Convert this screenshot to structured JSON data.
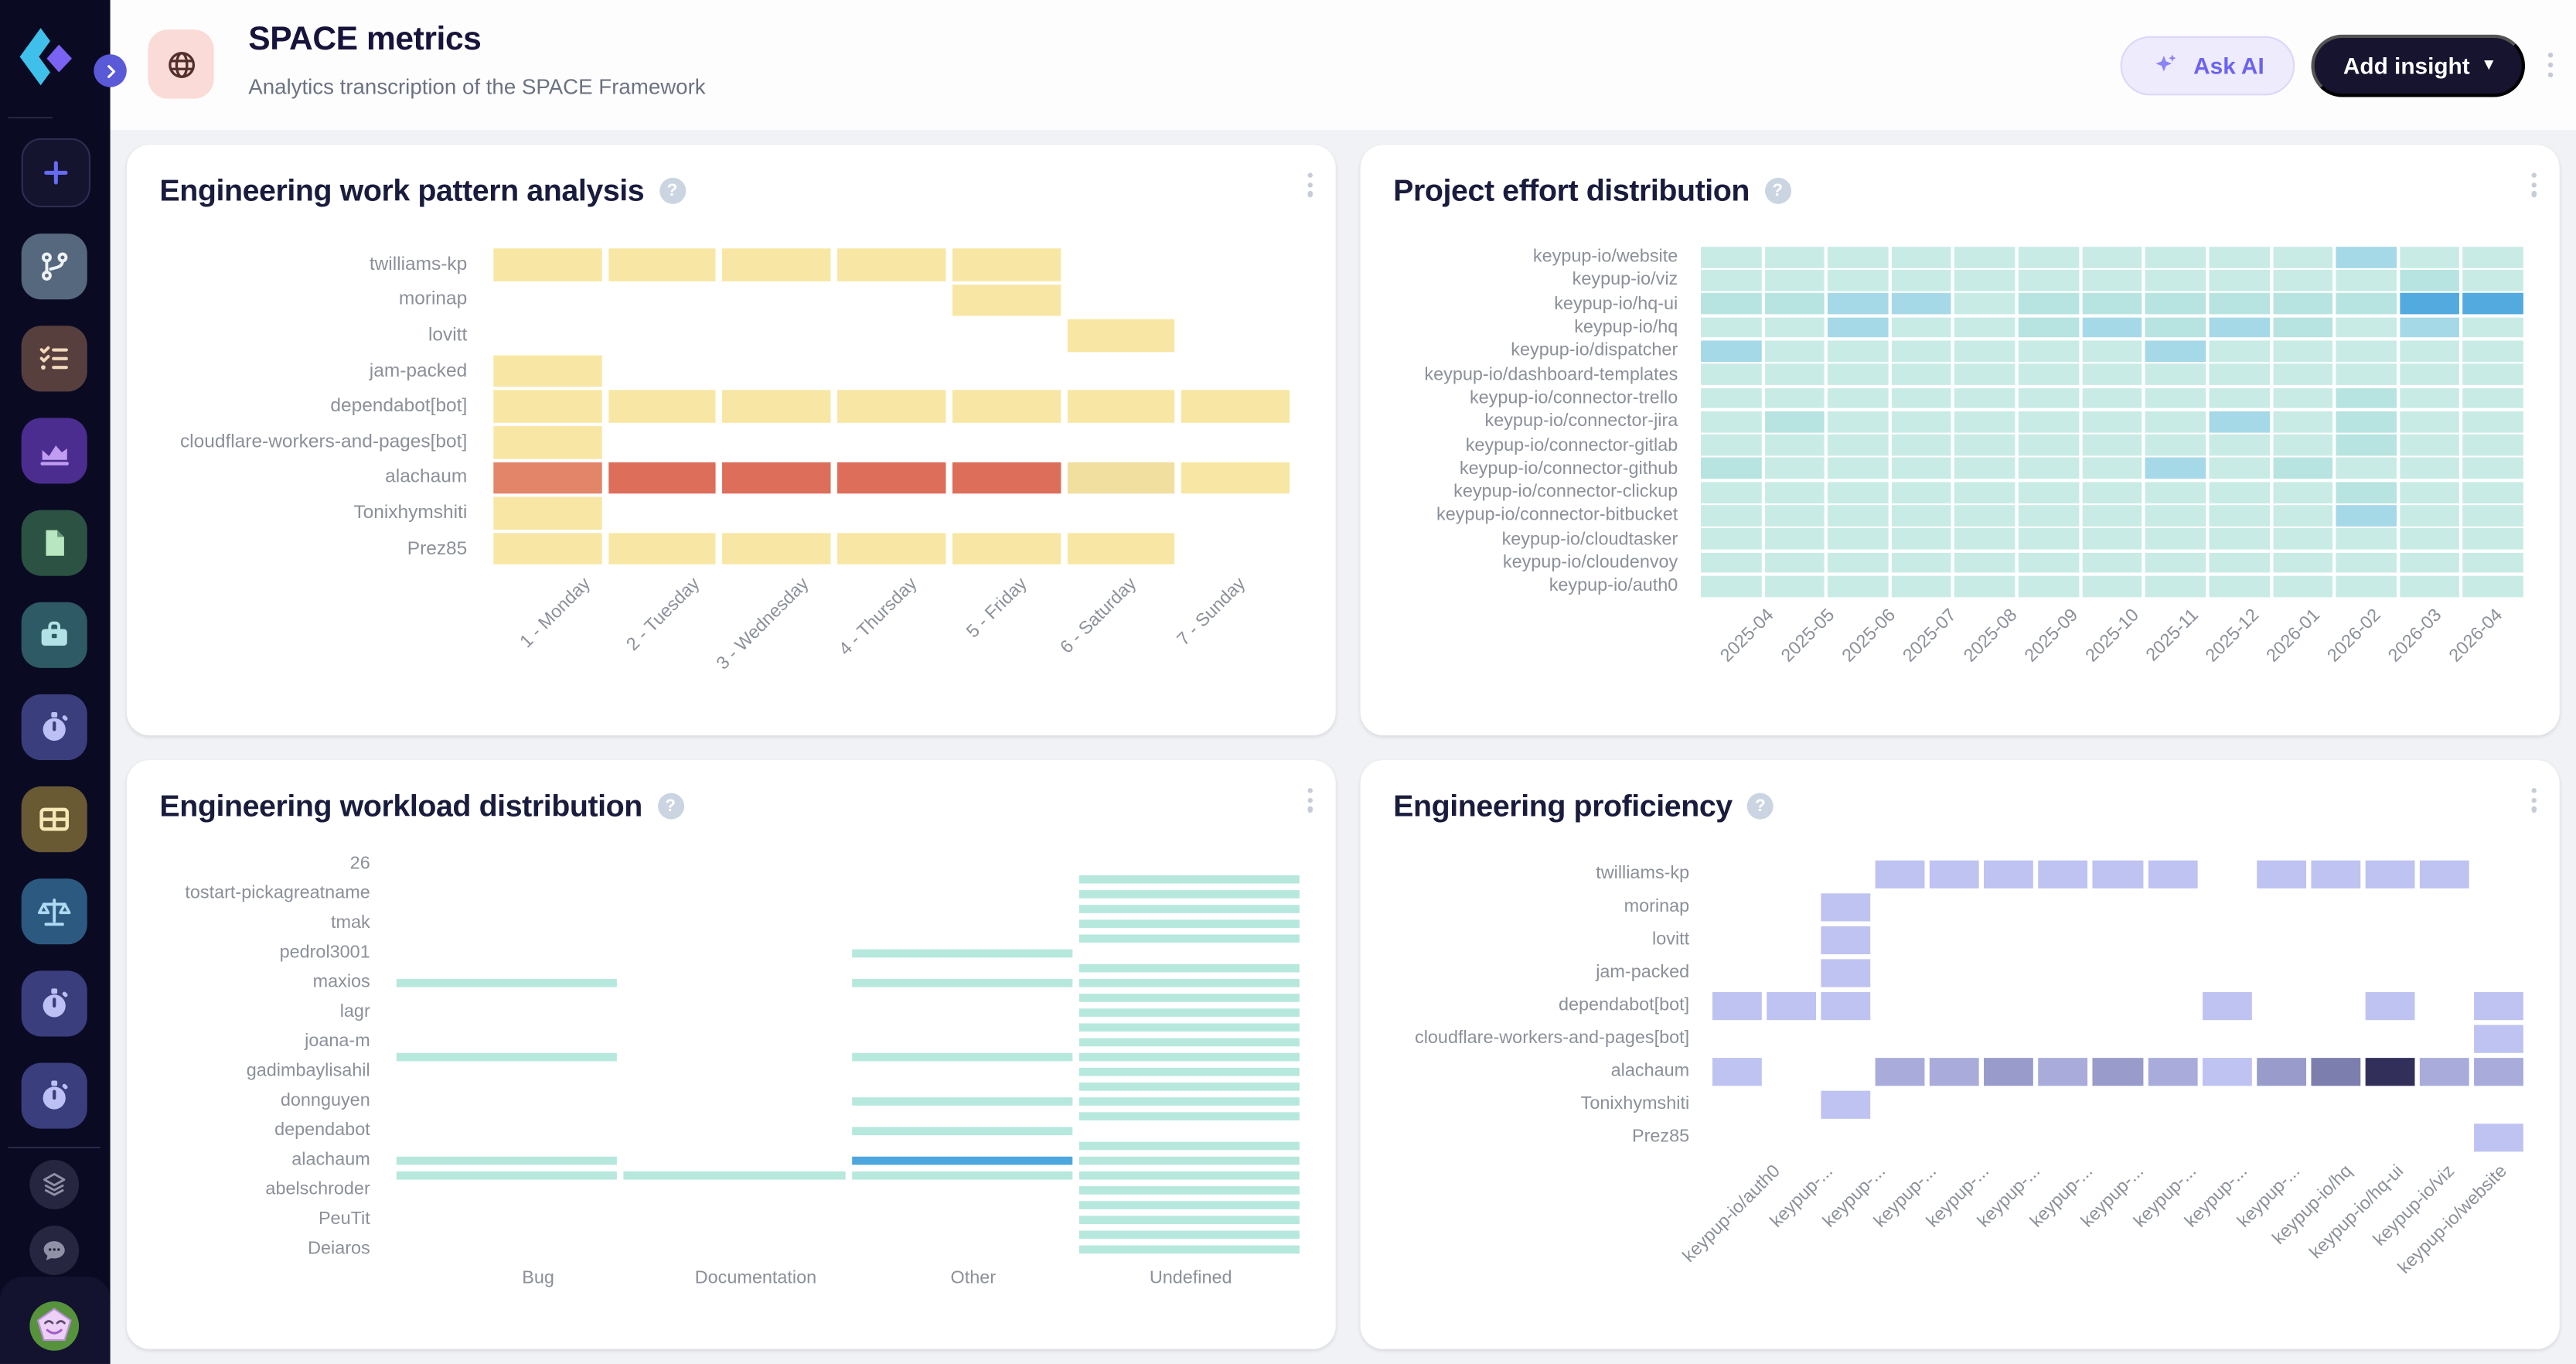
{
  "header": {
    "title": "SPACE metrics",
    "subtitle": "Analytics transcription of the SPACE Framework",
    "ask_ai_label": "Ask AI",
    "add_insight_label": "Add insight",
    "add_insight_caret": "▾"
  },
  "colors": {
    "sidebar_bg": "#0a0a23",
    "content_bg": "#f1f2f5",
    "ask_ai_text": "#6c63f0",
    "add_insight_bg": "#16142f",
    "title_text": "#16143a"
  },
  "sidebar": {
    "items": [
      {
        "name": "add-tile",
        "icon": "plus",
        "bg": "#14142f",
        "fg": "#666af4",
        "bordered": true
      },
      {
        "name": "git-tile",
        "icon": "git-branch",
        "bg": "#56687d",
        "fg": "#eef2f7"
      },
      {
        "name": "tasks-tile",
        "icon": "checklist",
        "bg": "#573f3e",
        "fg": "#f3d9bb"
      },
      {
        "name": "charts-tile",
        "icon": "area-chart",
        "bg": "#4b2d8f",
        "fg": "#c19df2"
      },
      {
        "name": "documents-tile",
        "icon": "document",
        "bg": "#2b5243",
        "fg": "#b8e6c0"
      },
      {
        "name": "projects-tile",
        "icon": "briefcase",
        "bg": "#2d5a64",
        "fg": "#b3e2e6"
      },
      {
        "name": "timer-tile-1",
        "icon": "stopwatch",
        "bg": "#3a3e7d",
        "fg": "#bcc0f4"
      },
      {
        "name": "dashboards-tile",
        "icon": "table",
        "bg": "#6a5a34",
        "fg": "#f6e8b5"
      },
      {
        "name": "balance-tile",
        "icon": "scales",
        "bg": "#2c5980",
        "fg": "#aed9f2"
      },
      {
        "name": "timer-tile-2",
        "icon": "stopwatch",
        "bg": "#3a3e7d",
        "fg": "#bcc0f4"
      },
      {
        "name": "timer-tile-3",
        "icon": "stopwatch",
        "bg": "#3a3e7d",
        "fg": "#bcc0f4"
      }
    ],
    "footer_items": [
      {
        "name": "layers-button",
        "icon": "layers"
      },
      {
        "name": "chat-button",
        "icon": "chat"
      }
    ]
  },
  "charts": [
    {
      "type": "heatmap",
      "kind": "work",
      "title": "Engineering work pattern analysis",
      "help": "?",
      "x_labels": [
        "1 - Monday",
        "2 - Tuesday",
        "3 - Wednesday",
        "4 - Thursday",
        "5 - Friday",
        "6 - Saturday",
        "7 - Sunday"
      ],
      "x_rotated": true,
      "palette": {
        "y": "#f8e7a4",
        "d": "#f1dfa0",
        "s": "#e28569",
        "r": "#dc6e5a"
      },
      "rows": [
        {
          "label": "twilliams-kp",
          "cells": "yyyyy.."
        },
        {
          "label": "morinap",
          "cells": "....y.."
        },
        {
          "label": "lovitt",
          "cells": ".....y."
        },
        {
          "label": "jam-packed",
          "cells": "y......"
        },
        {
          "label": "dependabot[bot]",
          "cells": "yyyyyyy"
        },
        {
          "label": "cloudflare-workers-and-pages[bot]",
          "cells": "y......"
        },
        {
          "label": "alachaum",
          "cells": "srrrrdy"
        },
        {
          "label": "Tonixhymshiti",
          "cells": "y......"
        },
        {
          "label": "Prez85",
          "cells": "yyyyyy."
        }
      ]
    },
    {
      "type": "heatmap",
      "kind": "effort",
      "title": "Project effort distribution",
      "help": "?",
      "x_labels": [
        "2025-04",
        "2025-05",
        "2025-06",
        "2025-07",
        "2025-08",
        "2025-09",
        "2025-10",
        "2025-11",
        "2025-12",
        "2026-01",
        "2026-02",
        "2026-03",
        "2026-04"
      ],
      "x_rotated": true,
      "palette": {
        ".": "#c9ebe6",
        "1": "#b7e4e0",
        "2": "#a6d9e7",
        "3": "#52aadf"
      },
      "rows": [
        {
          "label": "keypup-io/website",
          "cells": "..........2.."
        },
        {
          "label": "keypup-io/viz",
          "cells": "...........1."
        },
        {
          "label": "keypup-io/hq-ui",
          "cells": "1122.11111133"
        },
        {
          "label": "keypup-io/hq",
          "cells": "..2..12121.2."
        },
        {
          "label": "keypup-io/dispatcher",
          "cells": "2......2....."
        },
        {
          "label": "keypup-io/dashboard-templates",
          "cells": "............."
        },
        {
          "label": "keypup-io/connector-trello",
          "cells": "..........1.."
        },
        {
          "label": "keypup-io/connector-jira",
          "cells": ".1......2.1.."
        },
        {
          "label": "keypup-io/connector-gitlab",
          "cells": "..........1.."
        },
        {
          "label": "keypup-io/connector-github",
          "cells": "1......2.1..."
        },
        {
          "label": "keypup-io/connector-clickup",
          "cells": "..........1.."
        },
        {
          "label": "keypup-io/connector-bitbucket",
          "cells": "..........2.."
        },
        {
          "label": "keypup-io/cloudtasker",
          "cells": "............."
        },
        {
          "label": "keypup-io/cloudenvoy",
          "cells": "............."
        },
        {
          "label": "keypup-io/auth0",
          "cells": "............."
        }
      ]
    },
    {
      "type": "heatmap",
      "kind": "workload",
      "title": "Engineering workload distribution",
      "help": "?",
      "x_labels": [
        "Bug",
        "Documentation",
        "Other",
        "Undefined"
      ],
      "x_rotated": false,
      "palette": {
        "m": "#b7e8dd",
        "b": "#4da7de"
      },
      "rows": [
        {
          "label": "26",
          "cells": "...."
        },
        {
          "label": "",
          "cells": "...m"
        },
        {
          "label": "tostart-pickagreatname",
          "cells": "...m"
        },
        {
          "label": "",
          "cells": "...m"
        },
        {
          "label": "tmak",
          "cells": "...m"
        },
        {
          "label": "",
          "cells": "...m"
        },
        {
          "label": "pedrol3001",
          "cells": "..m."
        },
        {
          "label": "",
          "cells": "...m"
        },
        {
          "label": "maxios",
          "cells": "m.mm"
        },
        {
          "label": "",
          "cells": "...m"
        },
        {
          "label": "lagr",
          "cells": "...m"
        },
        {
          "label": "",
          "cells": "...m"
        },
        {
          "label": "joana-m",
          "cells": "...m"
        },
        {
          "label": "",
          "cells": "m.mm"
        },
        {
          "label": "gadimbaylisahil",
          "cells": "...m"
        },
        {
          "label": "",
          "cells": "...m"
        },
        {
          "label": "donnguyen",
          "cells": "..mm"
        },
        {
          "label": "",
          "cells": "...m"
        },
        {
          "label": "dependabot",
          "cells": "..m."
        },
        {
          "label": "",
          "cells": "...m"
        },
        {
          "label": "alachaum",
          "cells": "m.bm"
        },
        {
          "label": "",
          "cells": "mmmm"
        },
        {
          "label": "abelschroder",
          "cells": "...m"
        },
        {
          "label": "",
          "cells": "...m"
        },
        {
          "label": "PeuTit",
          "cells": "...m"
        },
        {
          "label": "",
          "cells": "...m"
        },
        {
          "label": "Deiaros",
          "cells": "...m"
        }
      ]
    },
    {
      "type": "heatmap",
      "kind": "prof",
      "title": "Engineering proficiency",
      "help": "?",
      "x_labels": [
        "keypup-io/auth0",
        "keypup-...",
        "keypup-...",
        "keypup-...",
        "keypup-...",
        "keypup-...",
        "keypup-...",
        "keypup-...",
        "keypup-...",
        "keypup-...",
        "keypup-...",
        "keypup-io/hq",
        "keypup-io/hq-ui",
        "keypup-io/viz",
        "keypup-io/website"
      ],
      "x_rotated": true,
      "palette": {
        "a": "#bfc3f1",
        "b": "#a9abda",
        "c": "#999cca",
        "d": "#7c7ead",
        "e": "#32305a"
      },
      "rows": [
        {
          "label": "twilliams-kp",
          "cells": "...aaaaaa.aaaa."
        },
        {
          "label": "morinap",
          "cells": "..a............"
        },
        {
          "label": "lovitt",
          "cells": "..a............"
        },
        {
          "label": "jam-packed",
          "cells": "..a............"
        },
        {
          "label": "dependabot[bot]",
          "cells": "aaa......a..a.a"
        },
        {
          "label": "cloudflare-workers-and-pages[bot]",
          "cells": "..............a"
        },
        {
          "label": "alachaum",
          "cells": "a..bbcbcbacdebb"
        },
        {
          "label": "Tonixhymshiti",
          "cells": "..a............"
        },
        {
          "label": "Prez85",
          "cells": "..............a"
        }
      ]
    }
  ]
}
